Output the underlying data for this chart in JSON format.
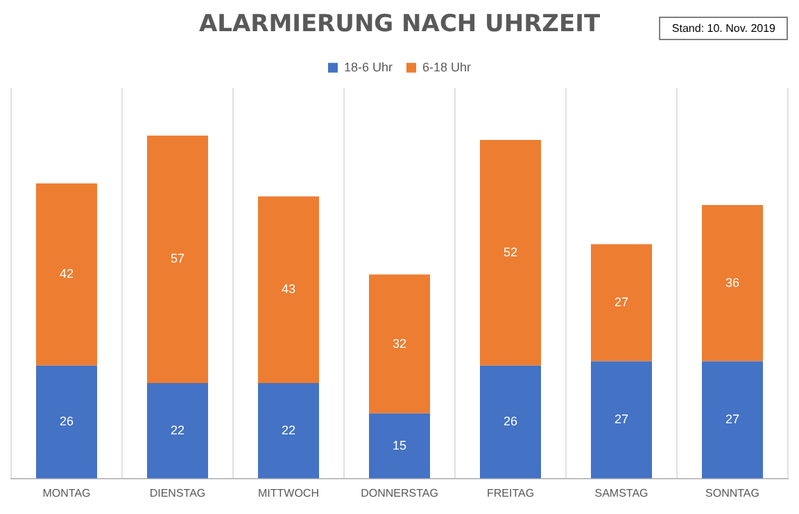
{
  "chart_data": {
    "type": "bar",
    "title": "ALARMIERUNG NACH UHRZEIT",
    "annotations": [
      "Stand: 10. Nov. 2019"
    ],
    "categories": [
      "MONTAG",
      "DIENSTAG",
      "MITTWOCH",
      "DONNERSTAG",
      "FREITAG",
      "SAMSTAG",
      "SONNTAG"
    ],
    "stacked": true,
    "data_labels": true,
    "grid": "x",
    "legend": "top",
    "series": [
      {
        "name": "18-6 Uhr",
        "color": "#4472c4",
        "values": [
          26,
          22,
          22,
          15,
          26,
          27,
          27
        ]
      },
      {
        "name": "6-18 Uhr",
        "color": "#ed7d31",
        "values": [
          42,
          57,
          43,
          32,
          52,
          27,
          36
        ]
      }
    ]
  }
}
